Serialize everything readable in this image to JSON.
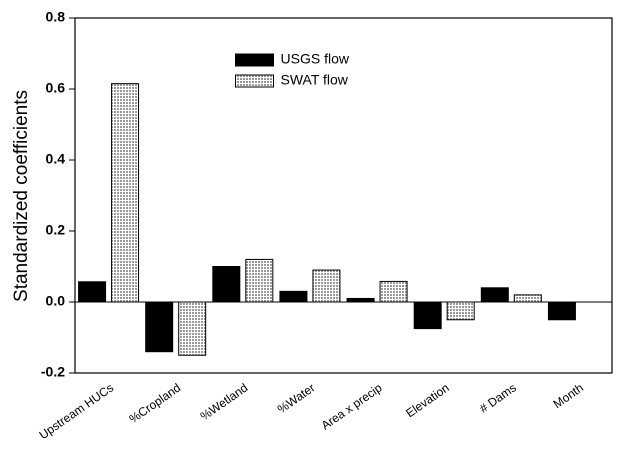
{
  "chart_data": {
    "type": "bar",
    "y_label": "Standardized coefficients",
    "categories": [
      "Upstream HUCs",
      "%Cropland",
      "%Wetland",
      "%Water",
      "Area x precip",
      "Elevation",
      "# Dams",
      "Month"
    ],
    "series": [
      {
        "name": "USGS flow",
        "color": "#000000",
        "values": [
          0.057,
          -0.14,
          0.1,
          0.03,
          0.01,
          -0.075,
          0.04,
          -0.05
        ]
      },
      {
        "name": "SWAT flow",
        "color": "#9a9a9a",
        "values": [
          0.615,
          -0.15,
          0.12,
          0.09,
          0.058,
          -0.05,
          0.02,
          null
        ]
      }
    ],
    "ylim": [
      -0.2,
      0.8
    ],
    "yticks": [
      -0.2,
      {
        "value": 0,
        "label": "0.0"
      },
      0.2,
      0.4,
      0.6,
      0.8
    ],
    "legend": "upper center",
    "grid": false
  }
}
